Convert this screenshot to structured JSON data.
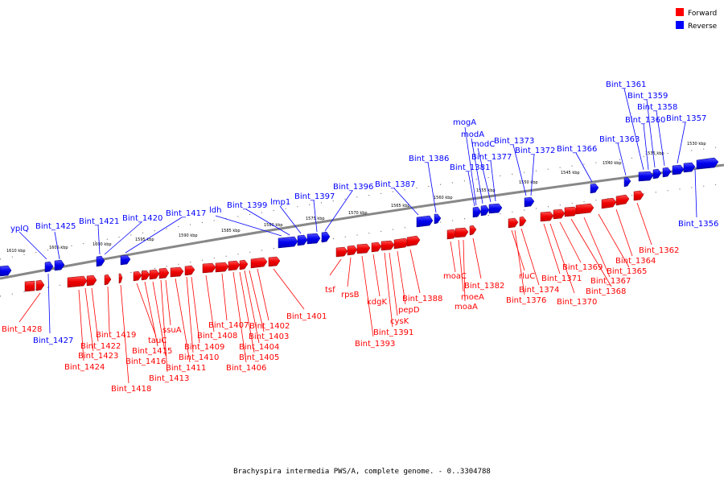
{
  "caption": "Brachyspira intermedia PWS/A, complete genome. - 0..3304788",
  "legend": [
    {
      "label": "Forward",
      "color": "#ff0000"
    },
    {
      "label": "Reverse",
      "color": "#0000ff"
    }
  ],
  "colors": {
    "forward": "#ff0000",
    "reverse": "#0000ff",
    "backbone": "#888888"
  },
  "ticks": [
    "1610 kbp",
    "1605 kbp",
    "1600 kbp",
    "1595 kbp",
    "1590 kbp",
    "1585 kbp",
    "1580 kbp",
    "1575 kbp",
    "1570 kbp",
    "1565 kbp",
    "1560 kbp",
    "1555 kbp",
    "1550 kbp",
    "1545 kbp",
    "1540 kbp",
    "1535 kbp",
    "1530 kbp"
  ],
  "reverse_labels": [
    "yplQ",
    "Bint_1425",
    "Bint_1421",
    "Bint_1420",
    "Bint_1417",
    "ldh",
    "Bint_1399",
    "lmp1",
    "Bint_1397",
    "Bint_1396",
    "Bint_1387",
    "Bint_1386",
    "mogA",
    "modA",
    "modC",
    "Bint_1381",
    "Bint_1377",
    "Bint_1373",
    "Bint_1372",
    "Bint_1366",
    "Bint_1363",
    "Bint_1361",
    "Bint_1359",
    "Bint_1358",
    "Bint_1360",
    "Bint_1357",
    "Bint_1356",
    "Bint_1427"
  ],
  "forward_labels": [
    "Bint_1428",
    "Bint_1424",
    "Bint_1423",
    "Bint_1422",
    "Bint_1419",
    "Bint_1418",
    "tauC",
    "Bint_1415",
    "Bint_1416",
    "Bint_1413",
    "ssuA",
    "Bint_1411",
    "Bint_1410",
    "Bint_1409",
    "Bint_1408",
    "Bint_1407",
    "Bint_1406",
    "Bint_1405",
    "Bint_1404",
    "Bint_1403",
    "Bint_1402",
    "Bint_1401",
    "tsf",
    "rpsB",
    "Bint_1393",
    "kdgK",
    "Bint_1391",
    "cysK",
    "pepD",
    "Bint_1388",
    "moaC",
    "moeA",
    "moaA",
    "Bint_1382",
    "rluC",
    "Bint_1376",
    "Bint_1374",
    "Bint_1371",
    "Bint_1370",
    "Bint_1369",
    "Bint_1368",
    "Bint_1367",
    "Bint_1365",
    "Bint_1364",
    "Bint_1362"
  ]
}
